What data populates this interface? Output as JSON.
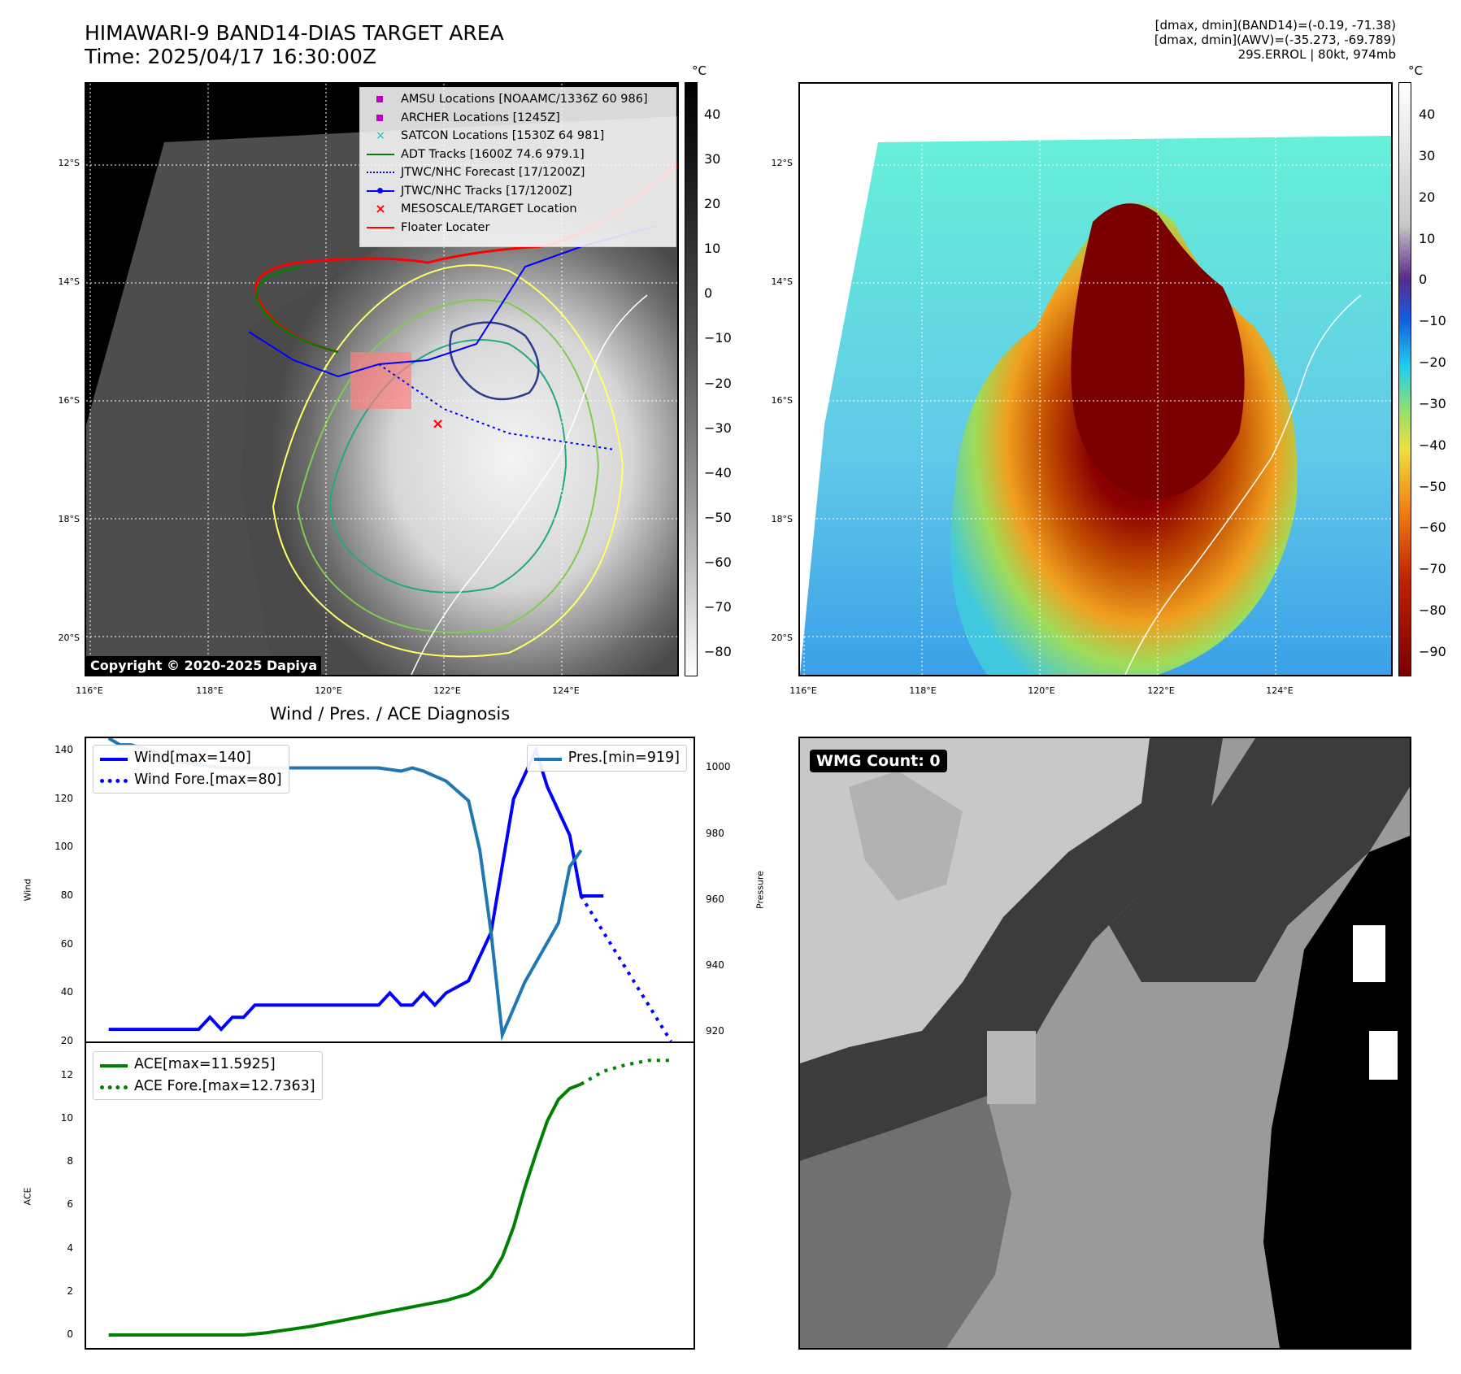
{
  "header": {
    "title_line1": "HIMAWARI-9 BAND14-DIAS TARGET AREA",
    "title_line2": "Time: 2025/04/17 16:30:00Z",
    "info_line1": "[dmax, dmin](BAND14)=(-0.19, -71.38)",
    "info_line2": "[dmax, dmin](AWV)=(-35.273, -69.789)",
    "info_line3": "29S.ERROL | 80kt, 974mb"
  },
  "map_axes": {
    "lat_labels": [
      "12°S",
      "14°S",
      "16°S",
      "18°S",
      "20°S"
    ],
    "lon_labels": [
      "116°E",
      "118°E",
      "120°E",
      "122°E",
      "124°E"
    ]
  },
  "left_colorbar": {
    "unit": "°C",
    "ticks": [
      "40",
      "30",
      "20",
      "10",
      "0",
      "−10",
      "−20",
      "−30",
      "−40",
      "−50",
      "−60",
      "−70",
      "−80"
    ]
  },
  "right_colorbar": {
    "unit": "°C",
    "ticks": [
      "40",
      "30",
      "20",
      "10",
      "0",
      "−10",
      "−20",
      "−30",
      "−40",
      "−50",
      "−60",
      "−70",
      "−80",
      "−90"
    ]
  },
  "map_legend": {
    "items": [
      {
        "label": "AMSU Locations [NOAAMC/1336Z 60 986]",
        "color": "#bf00bf",
        "kind": "square"
      },
      {
        "label": "ARCHER Locations [1245Z]",
        "color": "#bf00bf",
        "kind": "square"
      },
      {
        "label": "SATCON Locations [1530Z 64 981]",
        "color": "#00bfbf",
        "kind": "x"
      },
      {
        "label": "ADT Tracks [1600Z 74.6 979.1]",
        "color": "#008000",
        "kind": "line"
      },
      {
        "label": "JTWC/NHC Forecast [17/1200Z]",
        "color": "#0000ff",
        "kind": "dotted"
      },
      {
        "label": "JTWC/NHC Tracks [17/1200Z]",
        "color": "#0000ff",
        "kind": "linedot"
      },
      {
        "label": "MESOSCALE/TARGET Location",
        "color": "#ff0000",
        "kind": "x"
      },
      {
        "label": "Floater Locater",
        "color": "#ff0000",
        "kind": "line"
      }
    ]
  },
  "copyright": "Copyright © 2020-2025 Dapiya",
  "wmg": {
    "label": "WMG Count: 0"
  },
  "chart_data": [
    {
      "type": "line",
      "title": "Wind / Pres. / ACE Diagnosis",
      "ylabel": "Wind",
      "y2label": "Pressure",
      "ylim": [
        20,
        145
      ],
      "y2lim": [
        917,
        1009
      ],
      "yticks": [
        20,
        40,
        60,
        80,
        100,
        120,
        140
      ],
      "y2ticks": [
        920,
        940,
        960,
        980,
        1000
      ],
      "legend_left": [
        "Wind[max=140]",
        "Wind Fore.[max=80]"
      ],
      "legend_right": [
        "Pres.[min=919]"
      ],
      "series": [
        {
          "name": "Wind",
          "color": "#0000ff",
          "style": "solid",
          "x": [
            0,
            3,
            6,
            8,
            9,
            10,
            11,
            12,
            13,
            14,
            16,
            20,
            24,
            25,
            26,
            27,
            28,
            29,
            30,
            32,
            34,
            36,
            38,
            39,
            40,
            41,
            42,
            44
          ],
          "values": [
            25,
            25,
            25,
            25,
            30,
            25,
            30,
            30,
            35,
            35,
            35,
            35,
            35,
            40,
            35,
            35,
            40,
            35,
            40,
            45,
            65,
            120,
            140,
            125,
            115,
            105,
            80,
            80
          ]
        },
        {
          "name": "Wind Fore.",
          "color": "#0000ff",
          "style": "dotted",
          "x": [
            42,
            44,
            46,
            48,
            50
          ],
          "values": [
            80,
            65,
            50,
            35,
            20
          ]
        },
        {
          "name": "Pres.",
          "color": "#1f77b4",
          "style": "solid",
          "axis": "right",
          "x": [
            0,
            1,
            2,
            3,
            4,
            6,
            8,
            10,
            14,
            20,
            24,
            26,
            27,
            28,
            30,
            32,
            33,
            34,
            35,
            37,
            39,
            40,
            41,
            42
          ],
          "values": [
            1009,
            1007,
            1007,
            1006,
            1005,
            1002,
            1001,
            1000,
            1000,
            1000,
            1000,
            999,
            1000,
            999,
            996,
            990,
            975,
            950,
            919,
            935,
            947,
            953,
            970,
            975
          ]
        }
      ]
    },
    {
      "type": "line",
      "ylabel": "ACE",
      "ylim": [
        -0.6,
        13.5
      ],
      "yticks": [
        0,
        2,
        4,
        6,
        8,
        10,
        12
      ],
      "legend": [
        "ACE[max=11.5925]",
        "ACE Fore.[max=12.7363]"
      ],
      "series": [
        {
          "name": "ACE",
          "color": "#008000",
          "style": "solid",
          "x": [
            0,
            5,
            10,
            12,
            14,
            18,
            20,
            22,
            24,
            26,
            28,
            30,
            32,
            33,
            34,
            35,
            36,
            37,
            38,
            39,
            40,
            41,
            42
          ],
          "values": [
            0,
            0,
            0,
            0,
            0.1,
            0.4,
            0.6,
            0.8,
            1.0,
            1.2,
            1.4,
            1.6,
            1.9,
            2.2,
            2.7,
            3.6,
            5.0,
            6.8,
            8.4,
            9.9,
            10.9,
            11.4,
            11.6
          ]
        },
        {
          "name": "ACE Fore.",
          "color": "#008000",
          "style": "dotted",
          "x": [
            42,
            44,
            46,
            48,
            50
          ],
          "values": [
            11.6,
            12.2,
            12.5,
            12.7,
            12.7
          ]
        }
      ]
    }
  ]
}
